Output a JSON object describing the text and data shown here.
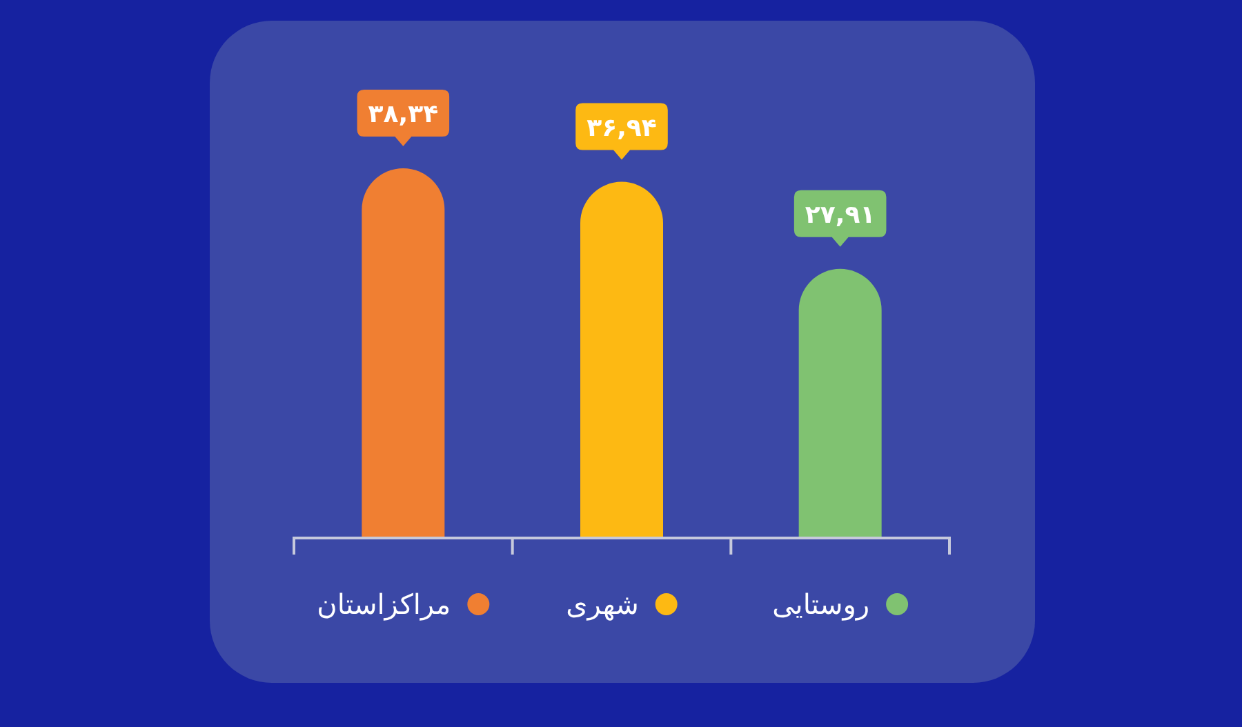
{
  "chart_data": {
    "type": "bar",
    "categories": [
      "مراکزاستان",
      "شهری",
      "روستایی"
    ],
    "values": [
      38.34,
      36.94,
      27.91
    ],
    "colors": [
      "#f07f32",
      "#fdb913",
      "#80c271"
    ],
    "value_labels": [
      "۳۸,۳۴",
      "۳۶,۹۴",
      "۲۷,۹۱"
    ],
    "tick_labels": "x"
  }
}
